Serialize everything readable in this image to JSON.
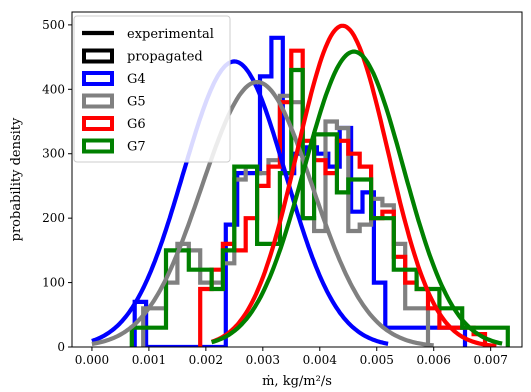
{
  "chart_data": {
    "type": "line",
    "xlabel": "ṁ, kg/m²/s",
    "ylabel": "probability density",
    "xlim": [
      -0.00035,
      0.00755
    ],
    "ylim": [
      0,
      520
    ],
    "x_ticks": [
      0.0,
      0.001,
      0.002,
      0.003,
      0.004,
      0.005,
      0.006,
      0.007
    ],
    "x_tick_labels": [
      "0.000",
      "0.001",
      "0.002",
      "0.003",
      "0.004",
      "0.005",
      "0.006",
      "0.007"
    ],
    "y_ticks": [
      0,
      100,
      200,
      300,
      400,
      500
    ],
    "y_tick_labels": [
      "0",
      "100",
      "200",
      "300",
      "400",
      "500"
    ],
    "grid": false,
    "legend_placement": "top-left",
    "legend": [
      {
        "label": "experimental",
        "style": "line",
        "color": "#000000"
      },
      {
        "label": "propagated",
        "style": "box",
        "color": "#000000"
      },
      {
        "label": "G4",
        "style": "box",
        "color": "#0000ff"
      },
      {
        "label": "G5",
        "style": "box",
        "color": "#808080"
      },
      {
        "label": "G6",
        "style": "box",
        "color": "#ff0000"
      },
      {
        "label": "G7",
        "style": "box",
        "color": "#008000"
      }
    ],
    "series": [
      {
        "name": "G4",
        "color": "#0000ff",
        "draw_order": 1,
        "experimental_normal": {
          "mean": 0.0025,
          "sd": 0.0009,
          "x_range": [
            0.0,
            0.0052
          ]
        },
        "propagated_histogram": {
          "edges": [
            0.00075,
            0.00095,
            0.00115,
            0.00135,
            0.00155,
            0.00175,
            0.00195,
            0.00215,
            0.00235,
            0.00255,
            0.00275,
            0.00295,
            0.00315,
            0.00335,
            0.00355,
            0.00375,
            0.00395,
            0.00415,
            0.00435,
            0.00455,
            0.00475,
            0.00495,
            0.00515,
            0.00535,
            0.00555,
            0.00575,
            0.00595,
            0.00615,
            0.00635,
            0.00655
          ],
          "densities": [
            70,
            0,
            0,
            0,
            0,
            0,
            0,
            0,
            190,
            270,
            270,
            420,
            480,
            270,
            300,
            310,
            300,
            280,
            340,
            210,
            240,
            100,
            30,
            30,
            30,
            30,
            30,
            30,
            30
          ]
        }
      },
      {
        "name": "G5",
        "color": "#808080",
        "draw_order": 2,
        "experimental_normal": {
          "mean": 0.0029,
          "sd": 0.00097,
          "x_range": [
            0.0,
            0.006
          ]
        },
        "propagated_histogram": {
          "edges": [
            0.0009,
            0.0011,
            0.0013,
            0.0015,
            0.0017,
            0.0019,
            0.0021,
            0.0023,
            0.0025,
            0.0027,
            0.0029,
            0.0031,
            0.0033,
            0.0035,
            0.0037,
            0.0039,
            0.0041,
            0.0043,
            0.0045,
            0.0047,
            0.0049,
            0.0051,
            0.0053,
            0.0055,
            0.0057,
            0.0059
          ],
          "densities": [
            60,
            60,
            100,
            160,
            150,
            100,
            100,
            130,
            260,
            280,
            270,
            290,
            390,
            380,
            200,
            180,
            350,
            340,
            180,
            190,
            230,
            220,
            160,
            60,
            60
          ]
        }
      },
      {
        "name": "G6",
        "color": "#ff0000",
        "draw_order": 3,
        "experimental_normal": {
          "mean": 0.0044,
          "sd": 0.0008,
          "x_range": [
            0.0021,
            0.0071
          ]
        },
        "propagated_histogram": {
          "edges": [
            0.0019,
            0.0021,
            0.0023,
            0.0025,
            0.0027,
            0.0029,
            0.0031,
            0.0033,
            0.0035,
            0.0037,
            0.0039,
            0.0041,
            0.0043,
            0.0045,
            0.0047,
            0.0049,
            0.0051,
            0.0053,
            0.0055,
            0.0057,
            0.0059,
            0.0061,
            0.0063,
            0.0065,
            0.0067,
            0.0069
          ],
          "densities": [
            90,
            120,
            160,
            150,
            200,
            250,
            280,
            380,
            460,
            320,
            290,
            270,
            320,
            300,
            280,
            200,
            210,
            140,
            100,
            90,
            60,
            30,
            30,
            30,
            20
          ]
        }
      },
      {
        "name": "G7",
        "color": "#008000",
        "draw_order": 4,
        "experimental_normal": {
          "mean": 0.0046,
          "sd": 0.00087,
          "x_range": [
            0.0021,
            0.0072
          ]
        },
        "propagated_histogram": {
          "edges": [
            0.0007,
            0.0009,
            0.0011,
            0.0013,
            0.0015,
            0.0017,
            0.0019,
            0.0021,
            0.0023,
            0.0025,
            0.0027,
            0.0029,
            0.0031,
            0.0033,
            0.0035,
            0.0037,
            0.0039,
            0.0041,
            0.0043,
            0.0045,
            0.0047,
            0.0049,
            0.0051,
            0.0053,
            0.0055,
            0.0057,
            0.0059,
            0.0061,
            0.0063,
            0.0065,
            0.0067,
            0.0069,
            0.0071,
            0.0073
          ],
          "densities": [
            30,
            30,
            30,
            150,
            150,
            120,
            120,
            90,
            150,
            280,
            280,
            160,
            160,
            270,
            430,
            200,
            330,
            330,
            240,
            260,
            260,
            200,
            200,
            120,
            120,
            90,
            90,
            60,
            60,
            30,
            30,
            30,
            30
          ]
        }
      }
    ]
  }
}
